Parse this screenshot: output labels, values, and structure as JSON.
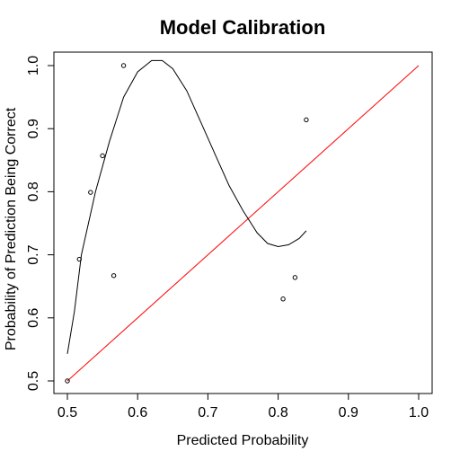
{
  "chart_data": {
    "type": "scatter",
    "title": "Model Calibration",
    "xlabel": "Predicted Probability",
    "ylabel": "Probability of Prediction Being Correct",
    "xlim": [
      0.5,
      1.0
    ],
    "ylim": [
      0.5,
      1.0
    ],
    "x_ticks": [
      "0.5",
      "0.6",
      "0.7",
      "0.8",
      "0.9",
      "1.0"
    ],
    "y_ticks": [
      "0.5",
      "0.6",
      "0.7",
      "0.8",
      "0.9",
      "1.0"
    ],
    "grid": false,
    "colors": {
      "points": "#000000",
      "smooth": "#000000",
      "reference": "#ff0000"
    },
    "points": [
      {
        "x": 0.5,
        "y": 0.5
      },
      {
        "x": 0.517,
        "y": 0.693
      },
      {
        "x": 0.533,
        "y": 0.799
      },
      {
        "x": 0.55,
        "y": 0.857
      },
      {
        "x": 0.566,
        "y": 0.667
      },
      {
        "x": 0.58,
        "y": 1.0
      },
      {
        "x": 0.807,
        "y": 0.63
      },
      {
        "x": 0.824,
        "y": 0.664
      },
      {
        "x": 0.84,
        "y": 0.914
      }
    ],
    "smooth_curve": [
      {
        "x": 0.5,
        "y": 0.543
      },
      {
        "x": 0.51,
        "y": 0.61
      },
      {
        "x": 0.52,
        "y": 0.7
      },
      {
        "x": 0.54,
        "y": 0.8
      },
      {
        "x": 0.56,
        "y": 0.88
      },
      {
        "x": 0.58,
        "y": 0.95
      },
      {
        "x": 0.6,
        "y": 0.99
      },
      {
        "x": 0.62,
        "y": 1.008
      },
      {
        "x": 0.635,
        "y": 1.008
      },
      {
        "x": 0.65,
        "y": 0.995
      },
      {
        "x": 0.67,
        "y": 0.96
      },
      {
        "x": 0.69,
        "y": 0.91
      },
      {
        "x": 0.71,
        "y": 0.86
      },
      {
        "x": 0.73,
        "y": 0.81
      },
      {
        "x": 0.75,
        "y": 0.77
      },
      {
        "x": 0.77,
        "y": 0.735
      },
      {
        "x": 0.785,
        "y": 0.718
      },
      {
        "x": 0.8,
        "y": 0.713
      },
      {
        "x": 0.815,
        "y": 0.716
      },
      {
        "x": 0.83,
        "y": 0.726
      },
      {
        "x": 0.84,
        "y": 0.738
      }
    ],
    "reference_line": [
      {
        "x": 0.5,
        "y": 0.5
      },
      {
        "x": 1.0,
        "y": 1.0
      }
    ]
  }
}
